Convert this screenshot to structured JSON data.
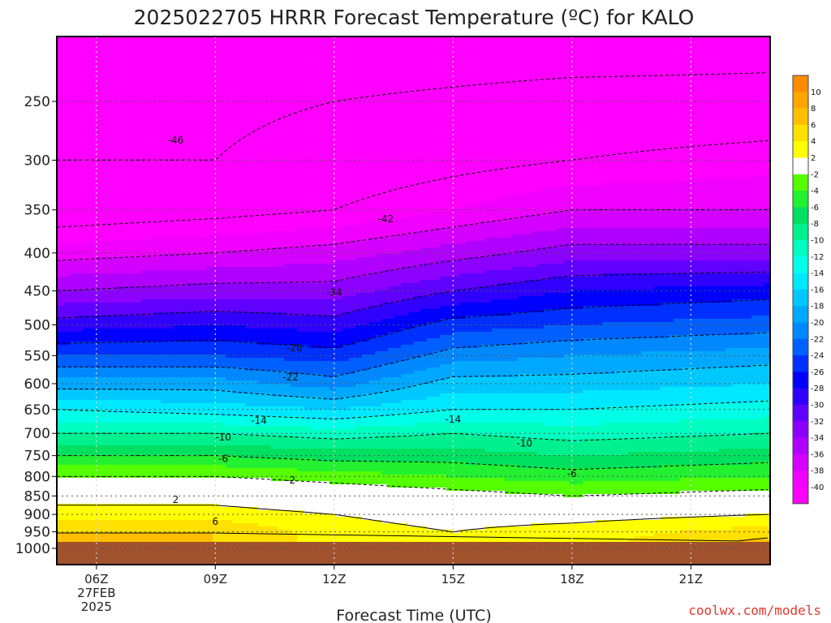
{
  "chart_data": {
    "type": "heatmap",
    "title": "2025022705 HRRR Forecast Temperature (ºC) for KALO",
    "xlabel": "Forecast Time (UTC)",
    "credit": "coolwx.com/models",
    "x_hours": [
      6,
      9,
      12,
      15,
      18,
      21
    ],
    "x_tick_labels": [
      "06Z",
      "09Z",
      "12Z",
      "15Z",
      "18Z",
      "21Z"
    ],
    "x_first_date_lines": [
      "27FEB",
      "2025"
    ],
    "xlim_hours": [
      5,
      23
    ],
    "y_ticks_hpa": [
      250,
      300,
      350,
      400,
      450,
      500,
      550,
      600,
      650,
      700,
      750,
      800,
      850,
      900,
      950,
      1000
    ],
    "y_tick_labels": [
      "250",
      "300",
      "350",
      "400",
      "450",
      "500",
      "550",
      "600",
      "650",
      "700",
      "750",
      "800",
      "850",
      "900",
      "950",
      "1000"
    ],
    "ylim_hpa": [
      200,
      1025
    ],
    "y_scale": "log-pressure",
    "ground_level_hpa": 985,
    "colorbar_labels": [
      "10",
      "8",
      "6",
      "4",
      "2",
      "-2",
      "-4",
      "-6",
      "-8",
      "-10",
      "-12",
      "-14",
      "-16",
      "-18",
      "-20",
      "-22",
      "-24",
      "-26",
      "-28",
      "-30",
      "-32",
      "-34",
      "-36",
      "-38",
      "-40"
    ],
    "colorbar_colors": [
      "#ff8c00",
      "#ffa500",
      "#ffbf00",
      "#ffe000",
      "#ffff00",
      "#ffffff",
      "#55ff00",
      "#22f030",
      "#00e060",
      "#00f090",
      "#00ffc0",
      "#00ffe8",
      "#00e8ff",
      "#00c8ff",
      "#00a8ff",
      "#0088ff",
      "#0060ff",
      "#0030ff",
      "#0000ff",
      "#3000ff",
      "#6000ff",
      "#8c00ff",
      "#b000ff",
      "#d400ff",
      "#f000ff",
      "#ff00ff"
    ],
    "ground_color": "#a0522d",
    "temperature_profiles": [
      {
        "hour": 5,
        "levels_hpa": [
          200,
          250,
          300,
          350,
          400,
          450,
          500,
          550,
          600,
          650,
          700,
          750,
          800,
          850,
          900,
          950,
          985
        ],
        "temps_c": [
          -50,
          -47,
          -46,
          -44,
          -39,
          -34,
          -29,
          -24,
          -19,
          -14,
          -10,
          -6,
          -2,
          1,
          3,
          6,
          6
        ]
      },
      {
        "hour": 9,
        "levels_hpa": [
          200,
          250,
          300,
          350,
          400,
          450,
          500,
          550,
          600,
          650,
          700,
          750,
          800,
          850,
          900,
          950,
          985
        ],
        "temps_c": [
          -50,
          -47,
          -46,
          -43,
          -38,
          -33,
          -28,
          -24,
          -19,
          -15,
          -10,
          -6,
          -2,
          1,
          3,
          6,
          6
        ]
      },
      {
        "hour": 12,
        "levels_hpa": [
          200,
          250,
          300,
          350,
          400,
          450,
          500,
          550,
          600,
          650,
          700,
          750,
          800,
          850,
          900,
          950,
          985
        ],
        "temps_c": [
          -50,
          -46,
          -44,
          -42,
          -37,
          -33,
          -29,
          -25,
          -21,
          -16,
          -11,
          -7,
          -3,
          0,
          2,
          3,
          3
        ]
      },
      {
        "hour": 15,
        "levels_hpa": [
          200,
          250,
          300,
          350,
          400,
          450,
          500,
          550,
          600,
          650,
          700,
          750,
          800,
          850,
          900,
          950,
          985
        ],
        "temps_c": [
          -50,
          -45,
          -43,
          -40,
          -35,
          -30,
          -25,
          -21,
          -17,
          -14,
          -10,
          -7,
          -4,
          -1,
          1,
          2,
          2
        ]
      },
      {
        "hour": 18,
        "levels_hpa": [
          200,
          250,
          300,
          350,
          400,
          450,
          500,
          550,
          600,
          650,
          700,
          750,
          800,
          850,
          900,
          950,
          985
        ],
        "temps_c": [
          -50,
          -44,
          -42,
          -38,
          -33,
          -28,
          -24,
          -20,
          -17,
          -14,
          -11,
          -8,
          -5,
          -2,
          1,
          3,
          3
        ]
      },
      {
        "hour": 23,
        "levels_hpa": [
          200,
          250,
          300,
          350,
          400,
          450,
          500,
          550,
          600,
          650,
          700,
          750,
          800,
          850,
          900,
          950,
          985
        ],
        "temps_c": [
          -49,
          -44,
          -41,
          -38,
          -33,
          -27,
          -23,
          -19,
          -16,
          -13,
          -10,
          -7,
          -4,
          -1,
          2,
          5,
          7
        ]
      }
    ],
    "contour_labels": [
      {
        "text": "-46",
        "hour": 8.0,
        "hpa": 282
      },
      {
        "text": "-42",
        "hour": 13.3,
        "hpa": 360
      },
      {
        "text": "-34",
        "hour": 12.0,
        "hpa": 452
      },
      {
        "text": "-26",
        "hour": 11.0,
        "hpa": 537
      },
      {
        "text": "-22",
        "hour": 10.9,
        "hpa": 588
      },
      {
        "text": "-14",
        "hour": 10.1,
        "hpa": 673
      },
      {
        "text": "-14",
        "hour": 15.0,
        "hpa": 670
      },
      {
        "text": "-10",
        "hour": 9.2,
        "hpa": 708
      },
      {
        "text": "-10",
        "hour": 16.8,
        "hpa": 722
      },
      {
        "text": "-6",
        "hour": 9.2,
        "hpa": 757
      },
      {
        "text": "-6",
        "hour": 18.0,
        "hpa": 793
      },
      {
        "text": "-2",
        "hour": 10.9,
        "hpa": 810
      },
      {
        "text": "2",
        "hour": 8.0,
        "hpa": 860
      },
      {
        "text": "6",
        "hour": 9.0,
        "hpa": 920
      }
    ]
  }
}
